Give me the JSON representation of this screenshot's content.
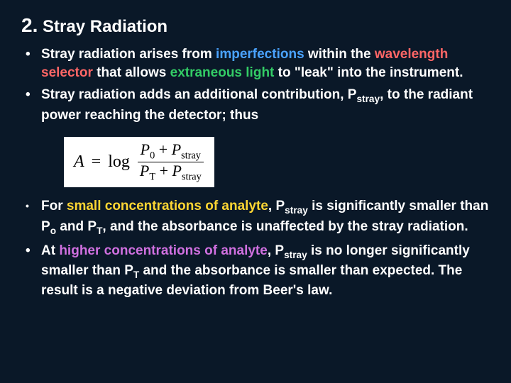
{
  "colors": {
    "background": "#0a1828",
    "text": "#ffffff",
    "imperfections": "#4aa3ff",
    "wavelength": "#ff6666",
    "extraneous": "#33cc66",
    "small": "#ffd633",
    "higher": "#d070e0",
    "eq_bg": "#ffffff",
    "eq_text": "#000000"
  },
  "typography": {
    "body_family": "Arial",
    "body_size_pt": 15,
    "body_weight": "bold",
    "title_size_pt": 18,
    "eq_family": "Times New Roman",
    "eq_size_pt": 18
  },
  "title": {
    "number": "2.",
    "text": "Stray Radiation"
  },
  "bullets": {
    "b1": {
      "t1": "Stray radiation arises from ",
      "kw1": "imperfections",
      "t2": " within the ",
      "kw2": "wavelength selector",
      "t3": " that allows ",
      "kw3": "extraneous light",
      "t4": " to \"leak\" into the instrument."
    },
    "b2": {
      "t1": "Stray radiation adds an additional contribution, P",
      "sub1": "stray",
      "t2": ", to the radiant power reaching the detector; thus"
    },
    "b3": {
      "t1": "For ",
      "kw1": "small concentrations of analyte",
      "t2": ", P",
      "sub1": "stray",
      "t3": " is significantly smaller than P",
      "sub2": "o",
      "t4": " and P",
      "sub3": "T",
      "t5": ", and the absorbance is unaffected by the stray radiation."
    },
    "b4": {
      "t1": "At ",
      "kw1": "higher concentrations of analyte",
      "t2": ", P",
      "sub1": "stray",
      "t3": " is no longer significantly smaller than P",
      "sub2": "T",
      "t4": " and the absorbance is smaller than expected. The result is a negative deviation from Beer's law."
    }
  },
  "equation": {
    "lhs": "A",
    "eq": "=",
    "op": "log",
    "num_p1": "P",
    "num_s1": "0",
    "num_plus": " + ",
    "num_p2": "P",
    "num_s2": "stray",
    "den_p1": "P",
    "den_s1": "T",
    "den_plus": " + ",
    "den_p2": "P",
    "den_s2": "stray"
  }
}
